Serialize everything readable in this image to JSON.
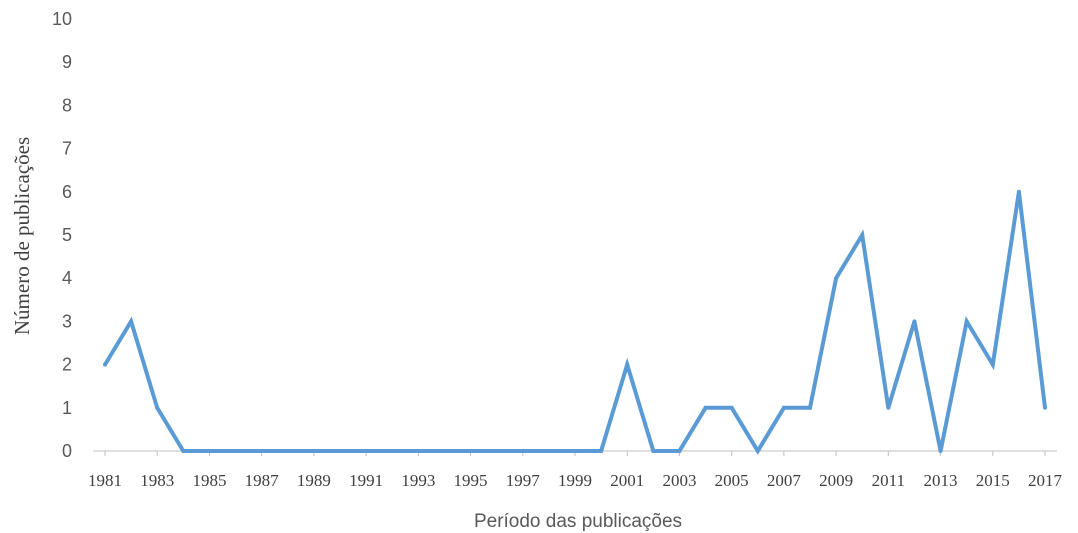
{
  "chart_data": {
    "type": "line",
    "xlabel": "Período das publicações",
    "ylabel": "Número de publicações",
    "ylim": [
      0,
      10
    ],
    "y_ticks": [
      "0",
      "1",
      "2",
      "3",
      "4",
      "5",
      "6",
      "7",
      "8",
      "9",
      "10"
    ],
    "x_tick_labels": [
      "1981",
      "1983",
      "1985",
      "1987",
      "1989",
      "1991",
      "1993",
      "1995",
      "1997",
      "1999",
      "2001",
      "2003",
      "2005",
      "2007",
      "2009",
      "2011",
      "2013",
      "2015",
      "2017"
    ],
    "grid": false,
    "legend": "none",
    "series_color": "#5B9BD5",
    "axis_color": "#bfbfbf",
    "series": [
      {
        "x": [
          1981,
          1982,
          1983,
          1984,
          1985,
          1986,
          1987,
          1988,
          1989,
          1990,
          1991,
          1992,
          1993,
          1994,
          1995,
          1996,
          1997,
          1998,
          1999,
          2000,
          2001,
          2002,
          2003,
          2004,
          2005,
          2006,
          2007,
          2008,
          2009,
          2010,
          2011,
          2012,
          2013,
          2014,
          2015,
          2016,
          2017
        ],
        "values": [
          2,
          3,
          1,
          0,
          0,
          0,
          0,
          0,
          0,
          0,
          0,
          0,
          0,
          0,
          0,
          0,
          0,
          0,
          0,
          0,
          2,
          0,
          0,
          1,
          1,
          0,
          1,
          1,
          4,
          5,
          1,
          3,
          0,
          3,
          2,
          6,
          1
        ]
      }
    ]
  }
}
